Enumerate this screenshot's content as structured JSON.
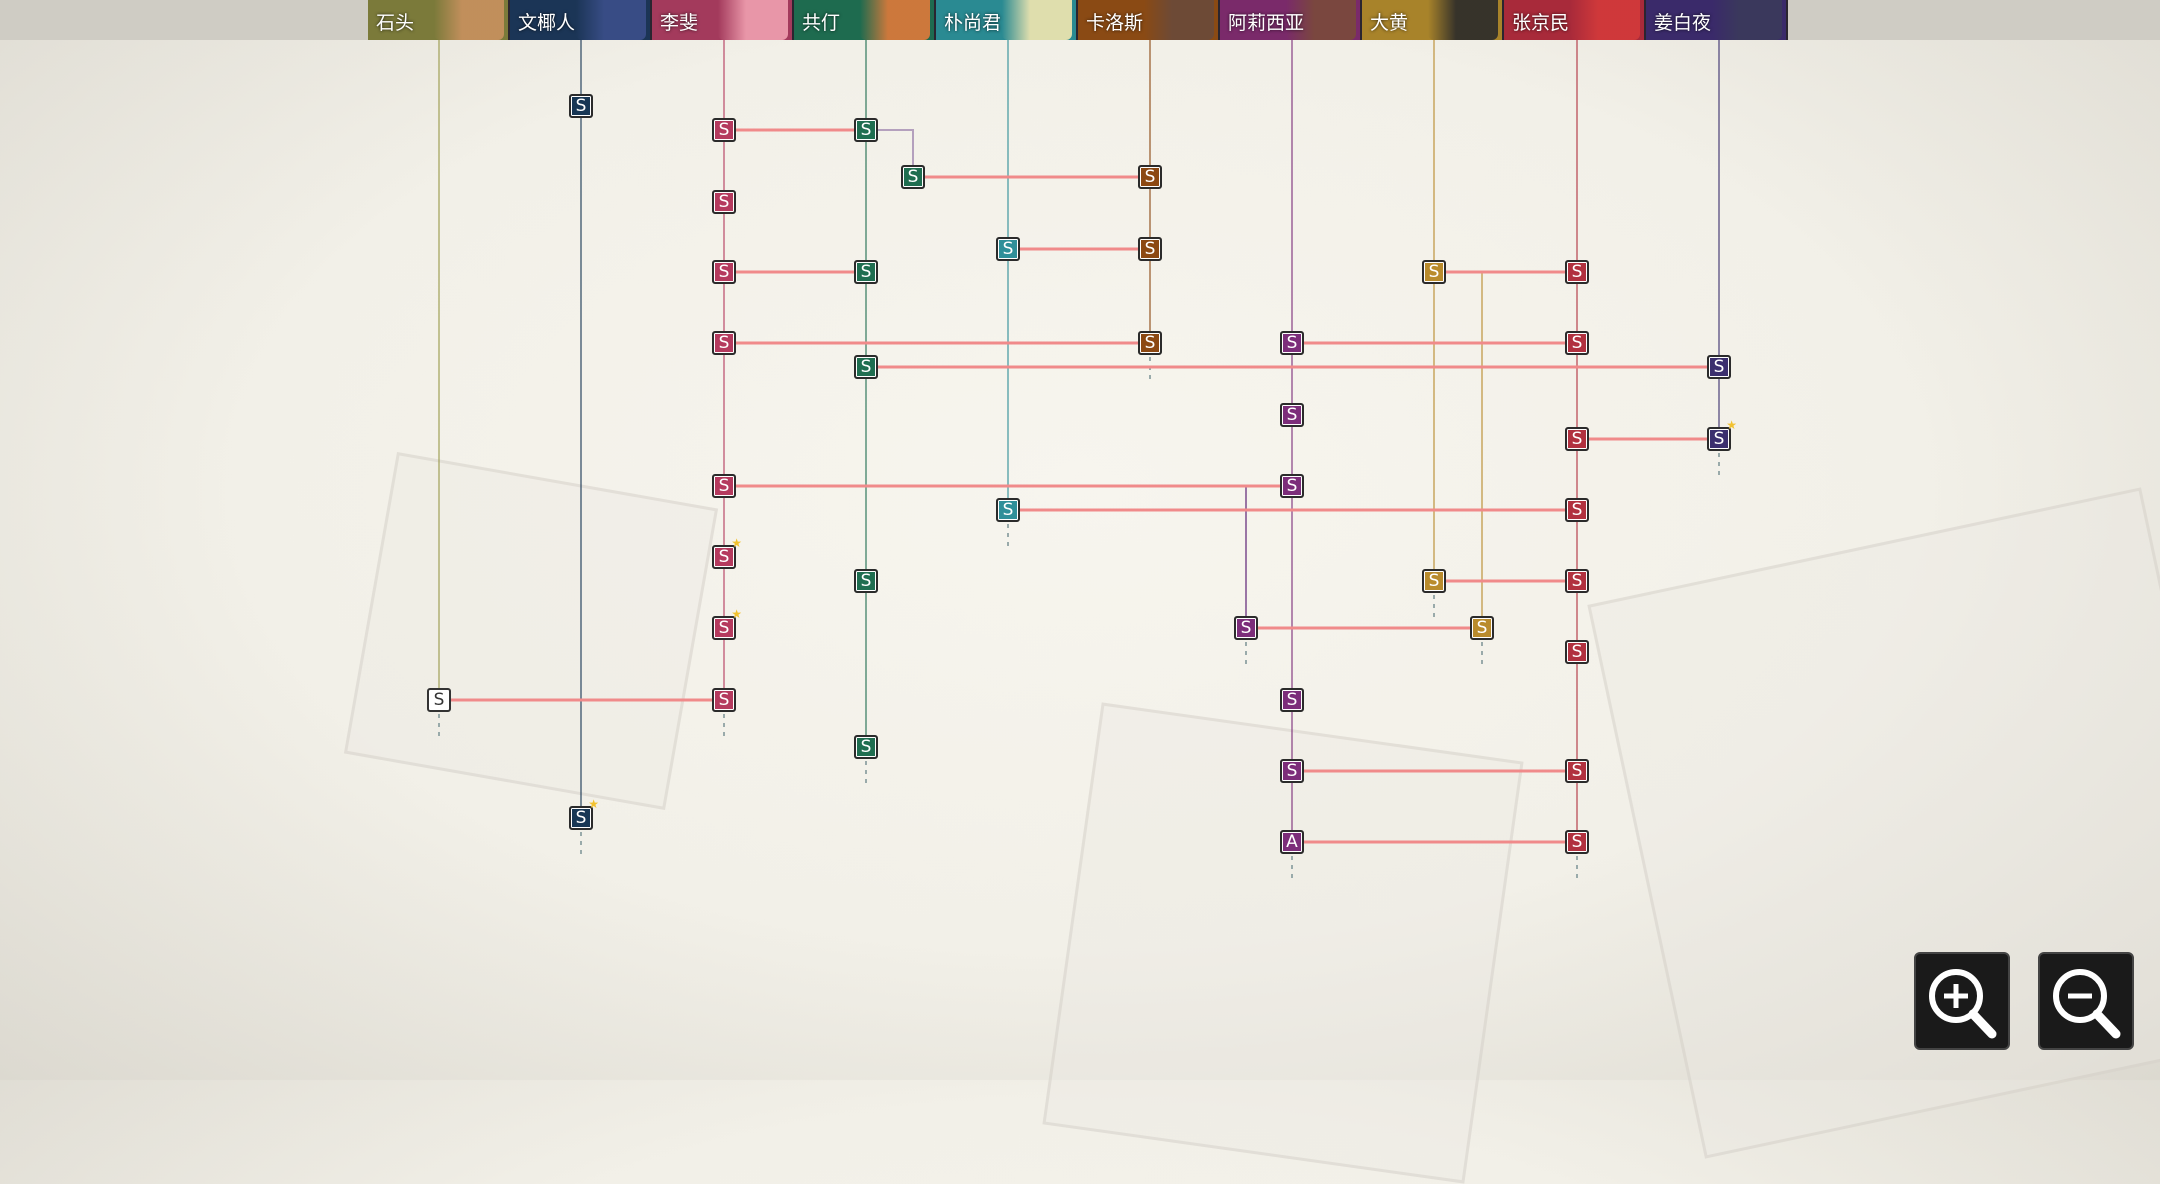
{
  "characters": [
    {
      "name": "石头",
      "color": "#7b7a3a",
      "portrait": "#c9915f"
    },
    {
      "name": "文椰人",
      "color": "#1b3556",
      "portrait": "#3b4f8a"
    },
    {
      "name": "李斐",
      "color": "#a33a5c",
      "portrait": "#f0a0b0"
    },
    {
      "name": "共仃",
      "color": "#1e6b4f",
      "portrait": "#e07a3a"
    },
    {
      "name": "朴尚君",
      "color": "#2a8a92",
      "portrait": "#f3e7b0"
    },
    {
      "name": "卡洛斯",
      "color": "#8a4a14",
      "portrait": "#6a4a3a"
    },
    {
      "name": "阿莉西亚",
      "color": "#7a2a6a",
      "portrait": "#7a4a3a"
    },
    {
      "name": "大黄",
      "color": "#a8832a",
      "portrait": "#2a2a2a"
    },
    {
      "name": "张京民",
      "color": "#a82a3a",
      "portrait": "#d33a3a"
    },
    {
      "name": "姜白夜",
      "color": "#3a2a6a",
      "portrait": "#3a3a5a"
    }
  ],
  "node_colors": {
    "石头": "#ffffff",
    "文椰人": "#173654",
    "李斐": "#b53a5e",
    "共仃": "#1f6e50",
    "朴尚君": "#2f8f99",
    "卡洛斯": "#8c4812",
    "阿莉西亚": "#7c2d7a",
    "大黄": "#b98b2c",
    "张京民": "#b1313f",
    "姜白夜": "#3b2f6e"
  },
  "node_label_s": "S",
  "node_label_a": "A",
  "zoom": {
    "in_icon": "zoom-in-icon",
    "out_icon": "zoom-out-icon"
  }
}
